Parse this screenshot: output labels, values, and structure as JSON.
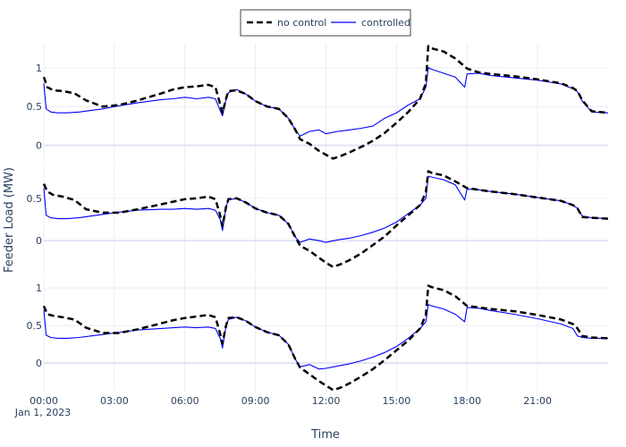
{
  "chart_data": {
    "type": "line",
    "xlabel": "Time",
    "ylabel": "Feeder Load (MW)",
    "x_ticks": [
      "00:00",
      "03:00",
      "06:00",
      "09:00",
      "12:00",
      "15:00",
      "18:00",
      "21:00"
    ],
    "x_tick_date": "Jan 1, 2023",
    "x_range_hours": [
      0,
      24
    ],
    "legend": {
      "placement": "top-center",
      "entries": [
        "no control",
        "controlled"
      ]
    },
    "colors": {
      "no_control": "#000000",
      "controlled": "#0000ff"
    },
    "panels": [
      {
        "y_ticks": [
          "1",
          "0.5",
          "0"
        ],
        "y_tick_values": [
          1,
          0.5,
          0
        ],
        "y_range": [
          -0.2,
          1.32
        ],
        "series": [
          {
            "legend": "no control",
            "dash": "dashed",
            "x_hours": [
              0,
              0.15,
              0.4,
              0.8,
              1.3,
              1.8,
              2.5,
              3.2,
              4,
              5,
              5.5,
              6,
              6.5,
              7,
              7.3,
              7.5,
              7.6,
              7.75,
              7.85,
              8.2,
              8.6,
              9,
              9.5,
              10,
              10.4,
              10.7,
              10.9,
              11.3,
              11.7,
              12,
              12.3,
              12.6,
              13,
              13.5,
              14,
              14.5,
              15,
              15.5,
              16,
              16.25,
              16.35,
              16.5,
              17,
              17.5,
              18,
              18.5,
              19,
              20,
              21,
              22,
              22.5,
              22.7,
              22.9,
              23.3,
              24
            ],
            "values": [
              0.88,
              0.75,
              0.71,
              0.7,
              0.67,
              0.58,
              0.5,
              0.52,
              0.58,
              0.67,
              0.72,
              0.75,
              0.76,
              0.78,
              0.75,
              0.53,
              0.42,
              0.6,
              0.7,
              0.71,
              0.66,
              0.57,
              0.5,
              0.47,
              0.35,
              0.2,
              0.08,
              0.02,
              -0.07,
              -0.12,
              -0.17,
              -0.14,
              -0.09,
              -0.02,
              0.06,
              0.16,
              0.29,
              0.43,
              0.6,
              0.8,
              1.28,
              1.25,
              1.21,
              1.12,
              0.99,
              0.94,
              0.92,
              0.89,
              0.85,
              0.8,
              0.74,
              0.7,
              0.58,
              0.44,
              0.42
            ]
          },
          {
            "legend": "controlled",
            "dash": "solid",
            "x_hours": [
              0,
              0.1,
              0.3,
              0.6,
              1,
              1.5,
              2,
              2.5,
              3,
              4,
              5,
              5.5,
              6,
              6.5,
              7,
              7.3,
              7.5,
              7.6,
              7.75,
              7.85,
              8.2,
              8.6,
              9,
              9.5,
              10,
              10.4,
              10.7,
              10.9,
              11.3,
              11.7,
              12,
              12.5,
              13,
              13.5,
              14,
              14.5,
              15,
              15.5,
              16,
              16.25,
              16.35,
              16.5,
              17,
              17.5,
              17.9,
              18,
              18.5,
              19,
              20,
              21,
              22,
              22.5,
              22.7,
              22.9,
              23.3,
              24
            ],
            "values": [
              0.8,
              0.47,
              0.43,
              0.42,
              0.42,
              0.43,
              0.45,
              0.47,
              0.5,
              0.55,
              0.59,
              0.6,
              0.62,
              0.6,
              0.62,
              0.6,
              0.45,
              0.38,
              0.6,
              0.68,
              0.72,
              0.66,
              0.57,
              0.5,
              0.47,
              0.35,
              0.2,
              0.12,
              0.18,
              0.2,
              0.15,
              0.18,
              0.2,
              0.22,
              0.25,
              0.35,
              0.42,
              0.52,
              0.6,
              0.75,
              1.0,
              0.98,
              0.93,
              0.88,
              0.75,
              0.92,
              0.93,
              0.9,
              0.87,
              0.84,
              0.79,
              0.73,
              0.69,
              0.57,
              0.43,
              0.42
            ]
          }
        ]
      },
      {
        "y_ticks": [
          "0.5",
          "0"
        ],
        "y_tick_values": [
          0.5,
          0
        ],
        "y_range": [
          -0.43,
          0.92
        ],
        "series": [
          {
            "legend": "no control",
            "dash": "dashed",
            "x_hours": [
              0,
              0.15,
              0.4,
              0.8,
              1.3,
              1.8,
              2.5,
              3.2,
              4,
              5,
              5.5,
              6,
              6.5,
              7,
              7.3,
              7.5,
              7.6,
              7.75,
              7.85,
              8.2,
              8.6,
              9,
              9.5,
              10,
              10.4,
              10.7,
              10.9,
              11.3,
              11.7,
              12,
              12.3,
              12.6,
              13,
              13.5,
              14,
              14.5,
              15,
              15.5,
              16,
              16.25,
              16.35,
              16.5,
              17,
              17.5,
              18,
              18.5,
              19,
              20,
              21,
              22,
              22.5,
              22.7,
              22.9,
              23.3,
              24
            ],
            "values": [
              0.67,
              0.58,
              0.54,
              0.52,
              0.48,
              0.37,
              0.33,
              0.33,
              0.37,
              0.43,
              0.46,
              0.49,
              0.5,
              0.52,
              0.49,
              0.3,
              0.17,
              0.4,
              0.49,
              0.5,
              0.45,
              0.38,
              0.33,
              0.3,
              0.2,
              0.04,
              -0.06,
              -0.12,
              -0.2,
              -0.26,
              -0.31,
              -0.28,
              -0.23,
              -0.15,
              -0.05,
              0.05,
              0.18,
              0.3,
              0.42,
              0.57,
              0.82,
              0.8,
              0.77,
              0.7,
              0.62,
              0.6,
              0.58,
              0.55,
              0.51,
              0.47,
              0.42,
              0.38,
              0.28,
              0.27,
              0.26
            ]
          },
          {
            "legend": "controlled",
            "dash": "solid",
            "x_hours": [
              0,
              0.1,
              0.3,
              0.6,
              1,
              1.5,
              2,
              2.5,
              3,
              4,
              5,
              5.5,
              6,
              6.5,
              7,
              7.3,
              7.5,
              7.6,
              7.75,
              7.85,
              8.2,
              8.6,
              9,
              9.5,
              10,
              10.4,
              10.7,
              10.9,
              11.3,
              11.7,
              12,
              12.5,
              13,
              13.5,
              14,
              14.5,
              15,
              15.5,
              16,
              16.25,
              16.35,
              16.5,
              17,
              17.5,
              17.9,
              18,
              18.5,
              19,
              20,
              21,
              22,
              22.5,
              22.7,
              22.9,
              23.3,
              24
            ],
            "values": [
              0.62,
              0.3,
              0.27,
              0.26,
              0.26,
              0.27,
              0.29,
              0.31,
              0.33,
              0.36,
              0.37,
              0.37,
              0.38,
              0.37,
              0.38,
              0.36,
              0.25,
              0.12,
              0.4,
              0.48,
              0.5,
              0.45,
              0.38,
              0.33,
              0.3,
              0.2,
              0.04,
              -0.02,
              0.02,
              0.0,
              -0.02,
              0.01,
              0.03,
              0.06,
              0.1,
              0.15,
              0.22,
              0.32,
              0.42,
              0.5,
              0.76,
              0.75,
              0.72,
              0.66,
              0.48,
              0.61,
              0.6,
              0.58,
              0.55,
              0.51,
              0.47,
              0.42,
              0.38,
              0.29,
              0.27,
              0.26
            ]
          }
        ]
      },
      {
        "y_ticks": [
          "1",
          "0.5",
          "0"
        ],
        "y_tick_values": [
          1,
          0.5,
          0
        ],
        "y_range": [
          -0.38,
          1.12
        ],
        "series": [
          {
            "legend": "no control",
            "dash": "dashed",
            "x_hours": [
              0,
              0.15,
              0.4,
              0.8,
              1.3,
              1.8,
              2.5,
              3.2,
              4,
              5,
              5.5,
              6,
              6.5,
              7,
              7.3,
              7.5,
              7.6,
              7.75,
              7.85,
              8.2,
              8.6,
              9,
              9.5,
              10,
              10.4,
              10.7,
              10.9,
              11.3,
              11.7,
              12,
              12.3,
              12.6,
              13,
              13.5,
              14,
              14.5,
              15,
              15.5,
              16,
              16.25,
              16.35,
              16.5,
              17,
              17.5,
              18,
              18.5,
              19,
              20,
              21,
              22,
              22.5,
              22.7,
              22.9,
              23.3,
              24
            ],
            "values": [
              0.76,
              0.65,
              0.63,
              0.61,
              0.58,
              0.47,
              0.4,
              0.4,
              0.45,
              0.53,
              0.57,
              0.6,
              0.62,
              0.64,
              0.61,
              0.39,
              0.26,
              0.5,
              0.6,
              0.61,
              0.56,
              0.48,
              0.41,
              0.37,
              0.25,
              0.05,
              -0.06,
              -0.15,
              -0.24,
              -0.3,
              -0.36,
              -0.33,
              -0.27,
              -0.18,
              -0.08,
              0.04,
              0.17,
              0.3,
              0.46,
              0.64,
              1.03,
              1.01,
              0.97,
              0.89,
              0.76,
              0.74,
              0.72,
              0.69,
              0.64,
              0.58,
              0.52,
              0.46,
              0.36,
              0.34,
              0.33
            ]
          },
          {
            "legend": "controlled",
            "dash": "solid",
            "x_hours": [
              0,
              0.1,
              0.3,
              0.6,
              1,
              1.5,
              2,
              2.5,
              3,
              4,
              5,
              5.5,
              6,
              6.5,
              7,
              7.3,
              7.5,
              7.6,
              7.75,
              7.85,
              8.2,
              8.6,
              9,
              9.5,
              10,
              10.4,
              10.7,
              10.9,
              11.3,
              11.7,
              12,
              12.5,
              13,
              13.5,
              14,
              14.5,
              15,
              15.5,
              16,
              16.25,
              16.35,
              16.5,
              17,
              17.5,
              17.9,
              18,
              18.5,
              19,
              20,
              21,
              22,
              22.5,
              22.7,
              22.9,
              23.3,
              24
            ],
            "values": [
              0.71,
              0.37,
              0.34,
              0.33,
              0.33,
              0.34,
              0.36,
              0.38,
              0.4,
              0.44,
              0.46,
              0.47,
              0.48,
              0.47,
              0.48,
              0.46,
              0.33,
              0.2,
              0.5,
              0.58,
              0.61,
              0.56,
              0.48,
              0.41,
              0.37,
              0.25,
              0.05,
              -0.05,
              -0.02,
              -0.08,
              -0.07,
              -0.04,
              -0.01,
              0.03,
              0.08,
              0.14,
              0.22,
              0.33,
              0.46,
              0.55,
              0.78,
              0.76,
              0.72,
              0.65,
              0.55,
              0.74,
              0.73,
              0.7,
              0.65,
              0.59,
              0.52,
              0.46,
              0.36,
              0.34,
              0.33,
              0.33
            ]
          }
        ]
      }
    ]
  }
}
